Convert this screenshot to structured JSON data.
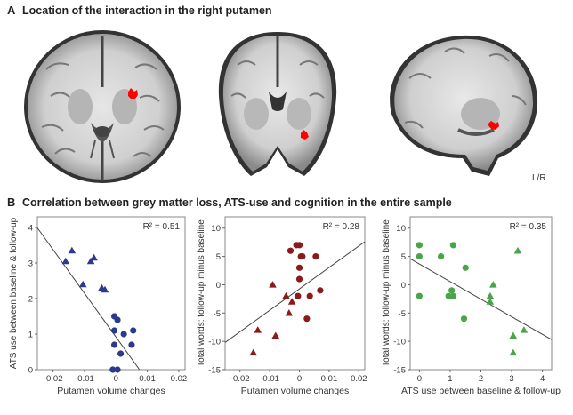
{
  "panel_a": {
    "letter": "A",
    "title": "Location of the interaction in the right putamen",
    "orientation_label": "L/R"
  },
  "panel_b": {
    "letter": "B",
    "title": "Correlation between grey matter loss, ATS-use and cognition in the entire sample"
  },
  "colors": {
    "navy": "#2b3a8c",
    "maroon": "#8b1a1a",
    "green": "#4aa54a",
    "activation": "#ff0000"
  },
  "chart_data": [
    {
      "type": "scatter",
      "xlabel": "Putamen volume changes",
      "ylabel": "ATS use between baseline & follow-up",
      "r2": "R² = 0.51",
      "xlim": [
        -0.025,
        0.022
      ],
      "ylim": [
        0,
        4.3
      ],
      "xticks": [
        -0.02,
        -0.01,
        0,
        0.01,
        0.02
      ],
      "xtick_labels": [
        "-0.02",
        "-0.01",
        "0",
        "0.01",
        "0.02"
      ],
      "yticks": [
        0,
        1,
        2,
        3,
        4
      ],
      "ytick_labels": [
        "0",
        "1",
        "2",
        "3",
        "4"
      ],
      "fit": [
        [
          -0.0255,
          4.05
        ],
        [
          0.0075,
          0
        ]
      ],
      "series": [
        {
          "marker": "triangle",
          "points": [
            [
              -0.014,
              3.35
            ],
            [
              -0.016,
              3.05
            ],
            [
              -0.007,
              3.15
            ],
            [
              -0.008,
              3.05
            ],
            [
              -0.0105,
              2.4
            ],
            [
              -0.0045,
              2.3
            ],
            [
              -0.0035,
              2.25
            ]
          ]
        },
        {
          "marker": "circle",
          "points": [
            [
              -0.0005,
              1.5
            ],
            [
              0.0005,
              1.4
            ],
            [
              -0.0005,
              1.1
            ],
            [
              0.0025,
              1.0
            ],
            [
              0.0055,
              1.1
            ],
            [
              -0.0005,
              0.7
            ],
            [
              0.005,
              0.7
            ],
            [
              0.0015,
              0.45
            ],
            [
              -0.001,
              0
            ],
            [
              0.0005,
              0
            ]
          ]
        }
      ]
    },
    {
      "type": "scatter",
      "xlabel": "Putamen volume changes",
      "ylabel": "Total words: follow-up minus baseline",
      "r2": "R² = 0.28",
      "xlim": [
        -0.025,
        0.022
      ],
      "ylim": [
        -15,
        12
      ],
      "xticks": [
        -0.02,
        -0.01,
        0,
        0.01,
        0.02
      ],
      "xtick_labels": [
        "-0.02",
        "-0.01",
        "0",
        "0.01",
        "0.02"
      ],
      "yticks": [
        -15,
        -10,
        -5,
        0,
        5,
        10
      ],
      "ytick_labels": [
        "-15",
        "-10",
        "-5",
        "0",
        "5",
        "10"
      ],
      "fit": [
        [
          -0.025,
          -10.2
        ],
        [
          0.022,
          7.6
        ]
      ],
      "series": [
        {
          "marker": "triangle",
          "points": [
            [
              -0.0155,
              -12.0
            ],
            [
              -0.014,
              -8.0
            ],
            [
              -0.009,
              0.0
            ],
            [
              -0.008,
              -9.0
            ],
            [
              -0.0045,
              -2.0
            ],
            [
              -0.0025,
              -3.0
            ],
            [
              -0.0035,
              -5.0
            ]
          ]
        },
        {
          "marker": "circle",
          "points": [
            [
              -0.001,
              7.0
            ],
            [
              0.0,
              7.0
            ],
            [
              -0.003,
              6.0
            ],
            [
              0.0005,
              5.0
            ],
            [
              0.001,
              5.0
            ],
            [
              0.0055,
              5.0
            ],
            [
              0.0,
              3.0
            ],
            [
              0.0,
              1.0
            ],
            [
              -0.0005,
              -2.0
            ],
            [
              0.0035,
              -2.0
            ],
            [
              0.007,
              -1.0
            ],
            [
              0.0025,
              -6.0
            ]
          ]
        }
      ]
    },
    {
      "type": "scatter",
      "xlabel": "ATS use between baseline & follow-up",
      "ylabel": "Total words: follow-up minus baseline",
      "r2": "R² = 0.35",
      "xlim": [
        -0.3,
        4.3
      ],
      "ylim": [
        -15,
        12
      ],
      "xticks": [
        0,
        1,
        2,
        3,
        4
      ],
      "xtick_labels": [
        "0",
        "1",
        "2",
        "3",
        "4"
      ],
      "yticks": [
        -15,
        -10,
        -5,
        0,
        5,
        10
      ],
      "ytick_labels": [
        "-15",
        "-10",
        "-5",
        "0",
        "5",
        "10"
      ],
      "fit": [
        [
          -0.3,
          4.6
        ],
        [
          4.3,
          -9.7
        ]
      ],
      "series": [
        {
          "marker": "circle",
          "points": [
            [
              0.0,
              7.0
            ],
            [
              0.0,
              5.0
            ],
            [
              0.7,
              5.0
            ],
            [
              1.1,
              7.0
            ],
            [
              1.5,
              3.0
            ],
            [
              1.05,
              -1.0
            ],
            [
              1.1,
              -2.0
            ],
            [
              0.95,
              -2.0
            ],
            [
              0.0,
              -2.0
            ],
            [
              1.45,
              -6.0
            ]
          ]
        },
        {
          "marker": "triangle",
          "points": [
            [
              3.2,
              6.0
            ],
            [
              2.4,
              0.0
            ],
            [
              2.3,
              -2.0
            ],
            [
              2.3,
              -3.0
            ],
            [
              3.4,
              -8.0
            ],
            [
              3.05,
              -9.0
            ],
            [
              3.05,
              -12.0
            ]
          ]
        }
      ]
    }
  ]
}
